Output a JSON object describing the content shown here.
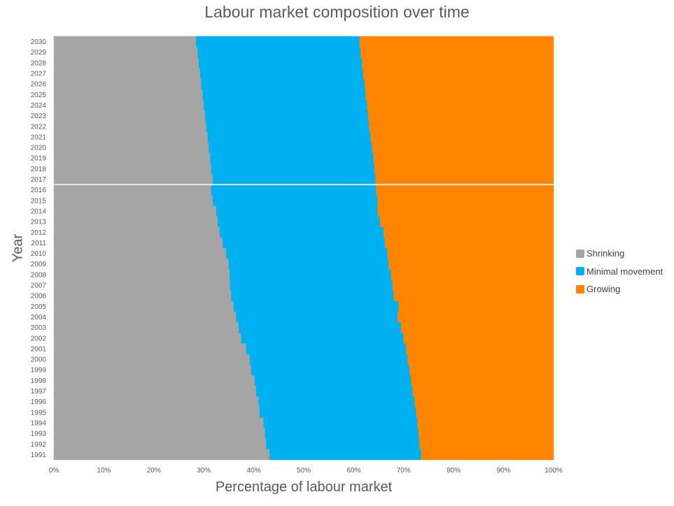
{
  "chart_data": {
    "type": "area",
    "orientation": "horizontal",
    "stacking": "percent",
    "title": "Labour market composition over time",
    "xlabel": "Percentage of labour market",
    "ylabel": "Year",
    "xlim": [
      0,
      100
    ],
    "x_ticks": [
      "0%",
      "10%",
      "20%",
      "30%",
      "40%",
      "50%",
      "60%",
      "70%",
      "80%",
      "90%",
      "100%"
    ],
    "categories": [
      "1991",
      "1992",
      "1993",
      "1994",
      "1995",
      "1996",
      "1997",
      "1998",
      "1999",
      "2000",
      "2001",
      "2002",
      "2003",
      "2004",
      "2005",
      "2006",
      "2007",
      "2008",
      "2009",
      "2010",
      "2011",
      "2012",
      "2013",
      "2014",
      "2015",
      "2016",
      "2017",
      "2018",
      "2019",
      "2020",
      "2021",
      "2022",
      "2023",
      "2024",
      "2025",
      "2026",
      "2027",
      "2028",
      "2029",
      "2030"
    ],
    "divider_between": [
      "2016",
      "2017"
    ],
    "series": [
      {
        "name": "Shrinking",
        "color": "#a5a5a5",
        "values": [
          43.2,
          42.5,
          42.3,
          42.0,
          41.2,
          41.0,
          40.5,
          40.2,
          39.5,
          39.2,
          38.5,
          37.5,
          37.0,
          36.5,
          36.0,
          35.5,
          35.3,
          35.2,
          35.0,
          34.5,
          33.8,
          33.2,
          32.8,
          32.5,
          31.8,
          31.5,
          31.8,
          31.5,
          31.3,
          31.0,
          30.8,
          30.5,
          30.3,
          30.0,
          29.8,
          29.5,
          29.3,
          29.0,
          28.8,
          28.5
        ]
      },
      {
        "name": "Minimal movement",
        "color": "#00b0f0",
        "values": [
          30.3,
          30.7,
          30.7,
          30.8,
          31.3,
          31.2,
          31.3,
          31.3,
          31.7,
          31.6,
          32.0,
          32.5,
          32.5,
          32.3,
          33.0,
          32.5,
          32.5,
          32.3,
          32.0,
          32.3,
          32.5,
          32.8,
          32.5,
          32.3,
          33.0,
          33.0,
          32.6,
          32.7,
          32.7,
          32.7,
          32.6,
          32.6,
          32.6,
          32.7,
          32.6,
          32.7,
          32.6,
          32.7,
          32.6,
          32.7
        ]
      },
      {
        "name": "Growing",
        "color": "#ff8500",
        "values": [
          26.5,
          26.8,
          27.0,
          27.2,
          27.5,
          27.8,
          28.2,
          28.5,
          28.8,
          29.2,
          29.5,
          30.0,
          30.5,
          31.2,
          31.0,
          32.0,
          32.2,
          32.5,
          33.0,
          33.2,
          33.7,
          34.0,
          34.7,
          35.2,
          35.2,
          35.5,
          35.6,
          35.8,
          36.0,
          36.3,
          36.6,
          36.9,
          37.1,
          37.3,
          37.6,
          37.8,
          38.1,
          38.3,
          38.6,
          38.8
        ]
      }
    ],
    "legend_position": "right",
    "grid": false
  }
}
